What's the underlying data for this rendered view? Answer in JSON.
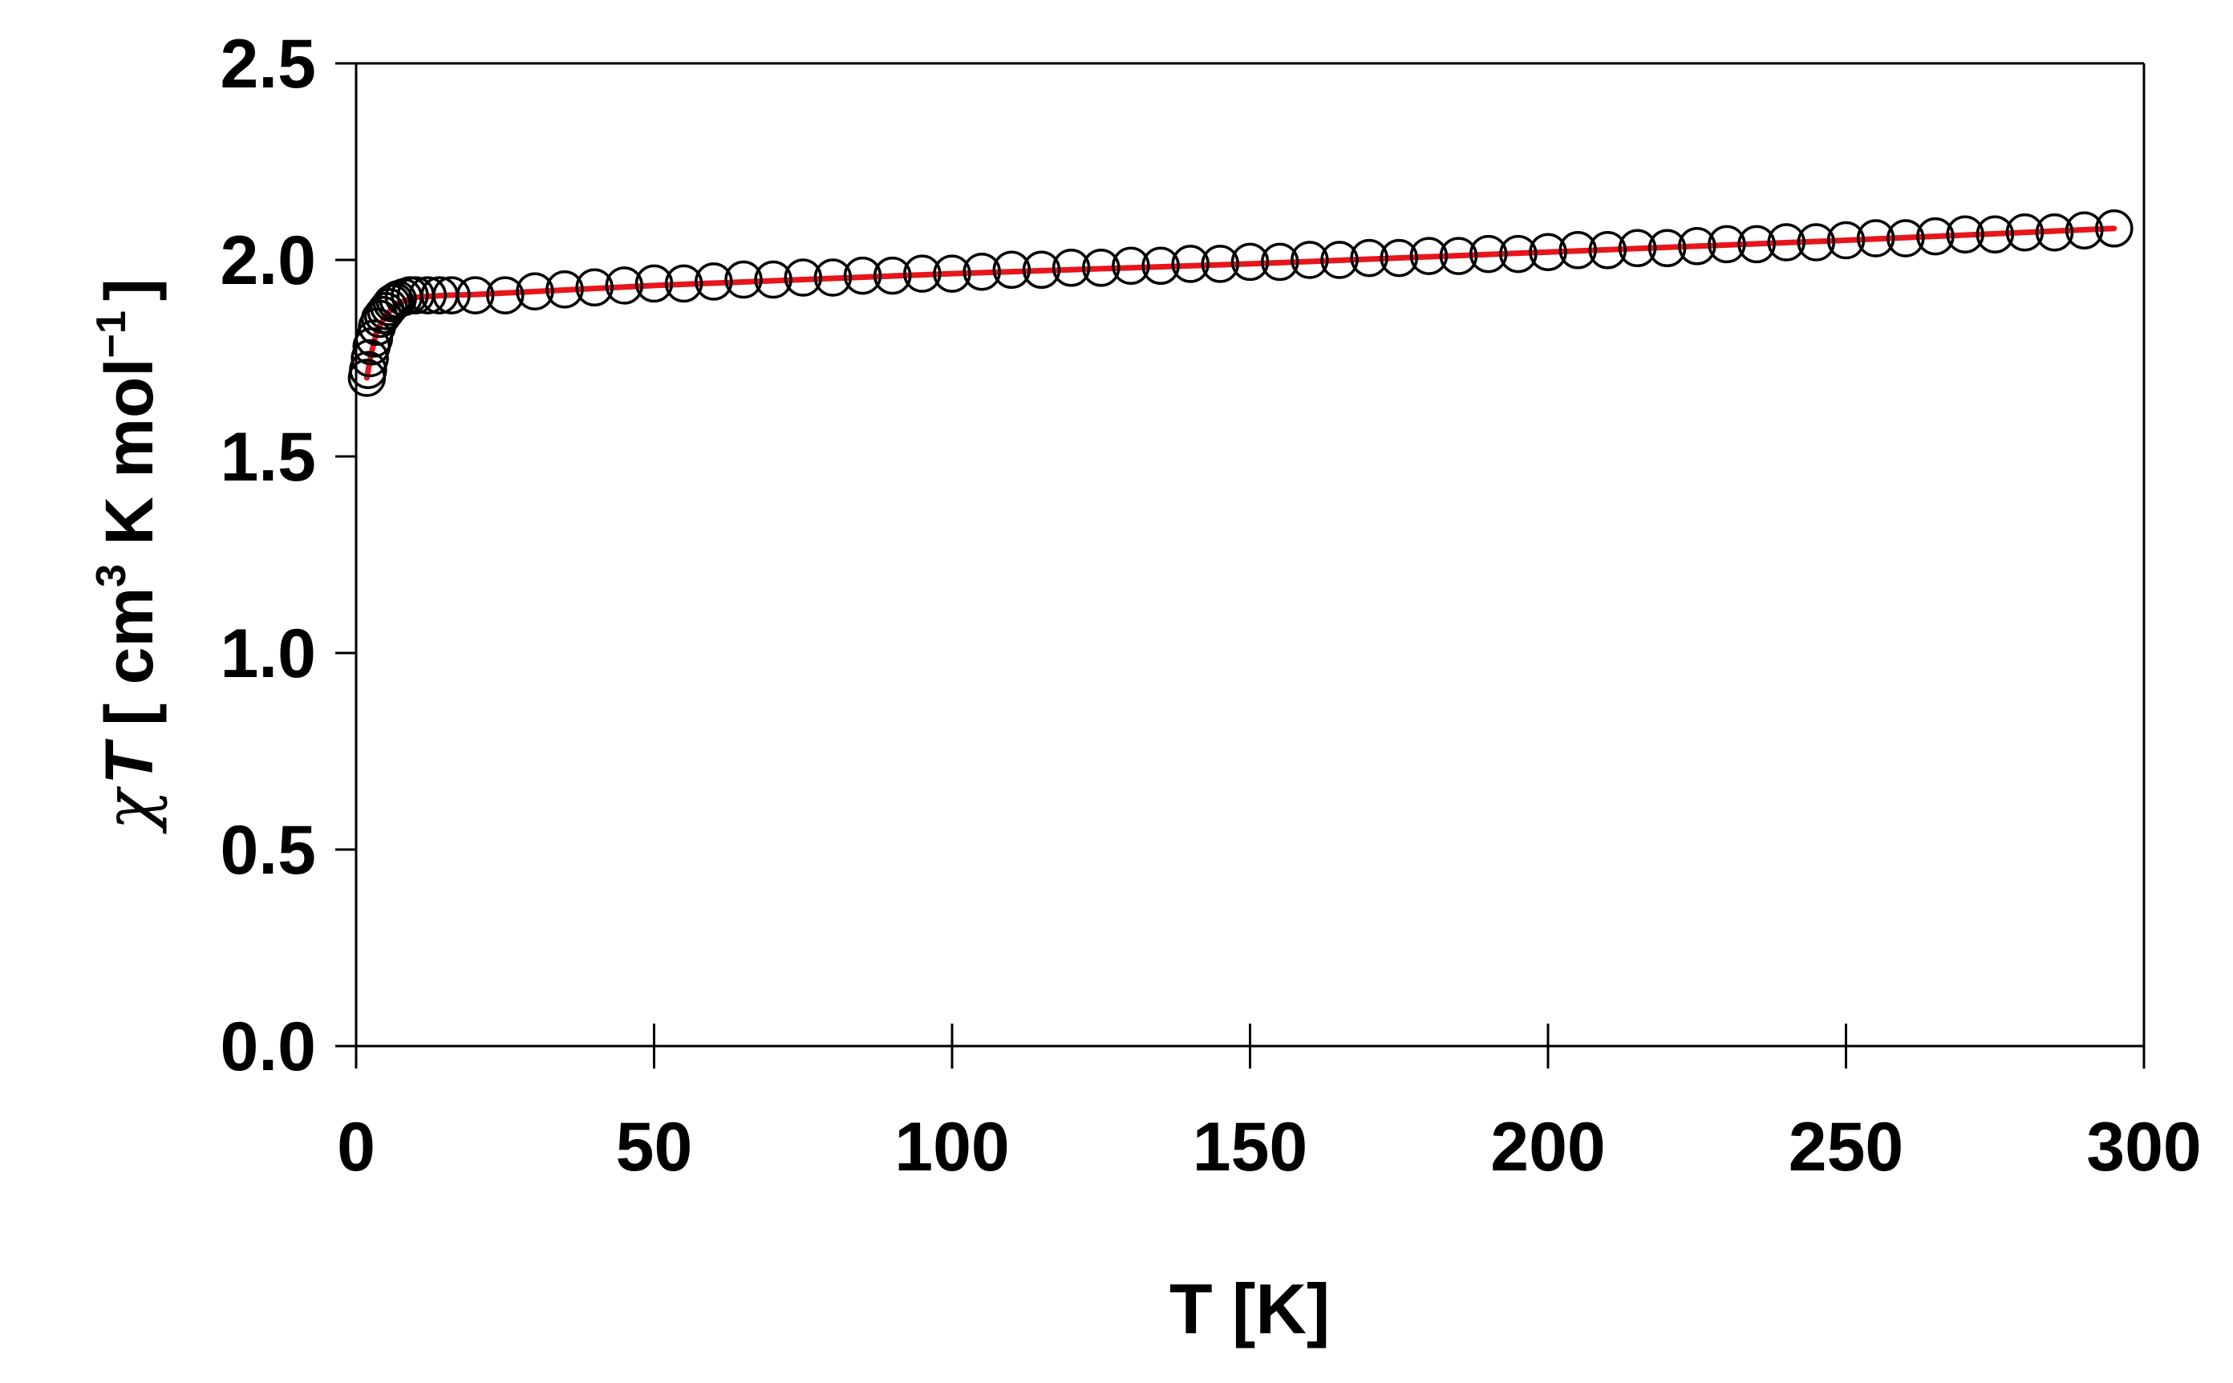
{
  "chart_data": {
    "type": "scatter",
    "xlabel": "T [K]",
    "ylabel": {
      "symbol": "χ",
      "variable": "T",
      "open": "[ cm",
      "sup1": "3",
      "mid": " K mol",
      "sup2": "−1",
      "close": "]"
    },
    "xlim": [
      0,
      300
    ],
    "ylim": [
      0,
      2.5
    ],
    "xticks": [
      0,
      50,
      100,
      150,
      200,
      250,
      300
    ],
    "xtick_labels": [
      "0",
      "50",
      "100",
      "150",
      "200",
      "250",
      "300"
    ],
    "yticks": [
      0,
      0.5,
      1.0,
      1.5,
      2.0,
      2.5
    ],
    "ytick_labels": [
      "0.0",
      "0.5",
      "1.0",
      "1.5",
      "2.0",
      "2.5"
    ],
    "grid": false,
    "legend": "none",
    "series": [
      {
        "kind": "markers",
        "marker": "open-circle",
        "color": "#000000",
        "x": [
          1.8,
          2.0,
          2.3,
          2.6,
          3.0,
          3.5,
          4.0,
          4.5,
          5.0,
          5.5,
          6.0,
          6.5,
          7.0,
          8.0,
          9.0,
          10,
          12,
          14,
          16,
          20,
          25,
          30,
          35,
          40,
          45,
          50,
          55,
          60,
          65,
          70,
          75,
          80,
          85,
          90,
          95,
          100,
          105,
          110,
          115,
          120,
          125,
          130,
          135,
          140,
          145,
          150,
          155,
          160,
          165,
          170,
          175,
          180,
          185,
          190,
          195,
          200,
          205,
          210,
          215,
          220,
          225,
          230,
          235,
          240,
          245,
          250,
          255,
          260,
          265,
          270,
          275,
          280,
          285,
          290,
          295
        ],
        "y": [
          1.7,
          1.72,
          1.75,
          1.78,
          1.8,
          1.83,
          1.85,
          1.86,
          1.87,
          1.88,
          1.89,
          1.895,
          1.9,
          1.905,
          1.91,
          1.91,
          1.91,
          1.91,
          1.91,
          1.91,
          1.91,
          1.92,
          1.925,
          1.93,
          1.935,
          1.94,
          1.94,
          1.945,
          1.95,
          1.95,
          1.955,
          1.955,
          1.96,
          1.96,
          1.965,
          1.965,
          1.97,
          1.975,
          1.975,
          1.98,
          1.98,
          1.985,
          1.985,
          1.99,
          1.99,
          1.995,
          1.995,
          2.0,
          2.0,
          2.005,
          2.005,
          2.01,
          2.01,
          2.015,
          2.015,
          2.02,
          2.025,
          2.025,
          2.03,
          2.03,
          2.035,
          2.04,
          2.04,
          2.045,
          2.045,
          2.05,
          2.055,
          2.055,
          2.06,
          2.065,
          2.065,
          2.07,
          2.07,
          2.075,
          2.08
        ]
      },
      {
        "kind": "line",
        "color": "#e8151b",
        "x": [
          1.8,
          2.5,
          3.5,
          5,
          7,
          10,
          15,
          20,
          50,
          100,
          150,
          200,
          250,
          295
        ],
        "y": [
          1.7,
          1.76,
          1.82,
          1.86,
          1.89,
          1.905,
          1.91,
          1.912,
          1.935,
          1.965,
          1.99,
          2.02,
          2.05,
          2.08
        ]
      }
    ]
  }
}
